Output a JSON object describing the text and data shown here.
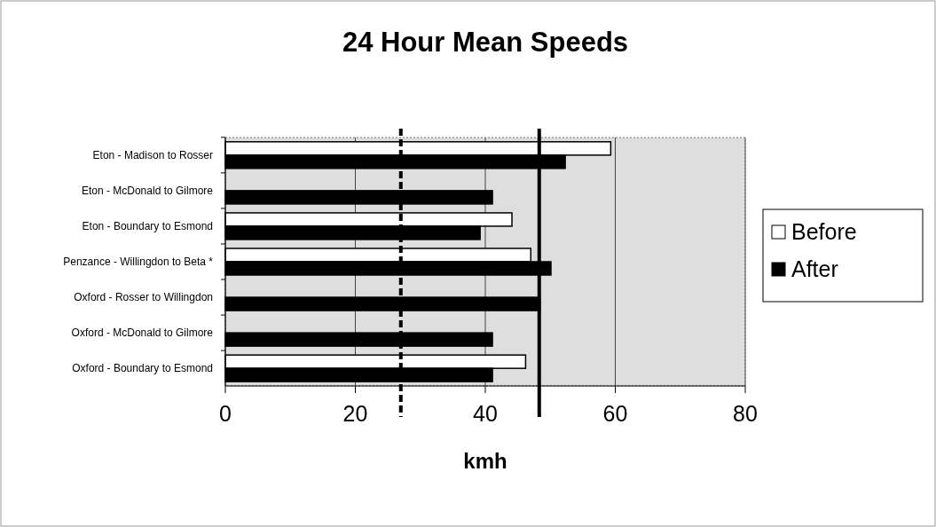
{
  "chart_data": {
    "type": "bar",
    "orientation": "horizontal",
    "title": "24 Hour Mean Speeds",
    "xlabel": "kmh",
    "categories": [
      "Eton - Madison to Rosser",
      "Eton - McDonald to Gilmore",
      "Eton - Boundary to Esmond",
      "Penzance - Willingdon to Beta *",
      "Oxford - Rosser to Willingdon",
      "Oxford - McDonald to Gilmore",
      "Oxford - Boundary to Esmond"
    ],
    "series": [
      {
        "name": "Before",
        "color": "#ffffff",
        "values": [
          59.3,
          null,
          44.1,
          47,
          null,
          null,
          46.2
        ]
      },
      {
        "name": "After",
        "color": "#000000",
        "values": [
          52.3,
          41.1,
          39.2,
          50.1,
          48.4,
          41.1,
          41.1
        ]
      }
    ],
    "xlim": [
      0,
      80
    ],
    "xticks": [
      0,
      20,
      40,
      60,
      80
    ],
    "grid": "x",
    "legend": "right",
    "ref_lines": [
      {
        "axis": "x",
        "value": 48.3,
        "color": "#000000"
      },
      {
        "axis": "x",
        "value": 27,
        "color": "#000000",
        "line_style": "dashed"
      }
    ]
  }
}
